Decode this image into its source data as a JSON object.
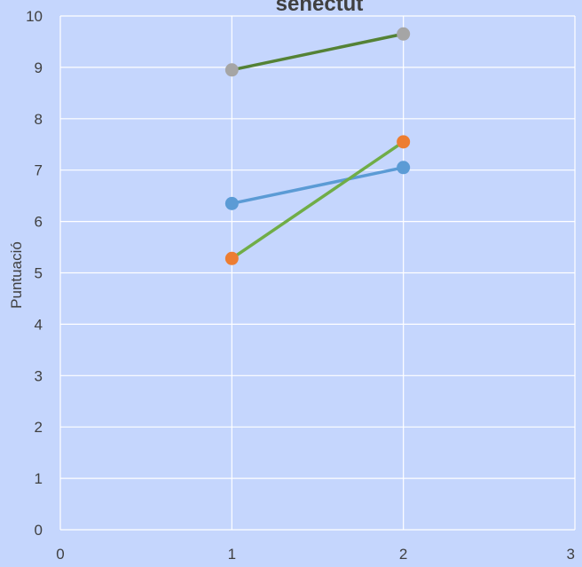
{
  "chart_data": {
    "type": "scatter",
    "title": "senectut",
    "xlabel": "",
    "ylabel": "Puntuació",
    "xlim": [
      0,
      3
    ],
    "ylim": [
      0,
      10
    ],
    "x_ticks": [
      "0",
      "1",
      "2",
      "3"
    ],
    "y_ticks": [
      "0",
      "1",
      "2",
      "3",
      "4",
      "5",
      "6",
      "7",
      "8",
      "9",
      "10"
    ],
    "grid": true,
    "legend": "none",
    "background_color": "#c5d6fd",
    "series": [
      {
        "color": "#5b9bd5",
        "marker_color": "#5b9bd5",
        "x": [
          1,
          2
        ],
        "y": [
          6.35,
          7.05
        ]
      },
      {
        "color": "#70ad47",
        "marker_color": "#ed7d31",
        "x": [
          1,
          2
        ],
        "y": [
          5.28,
          7.55
        ]
      },
      {
        "color": "#548235",
        "marker_color": "#a5a5a5",
        "x": [
          1,
          2
        ],
        "y": [
          8.95,
          9.65
        ]
      }
    ]
  }
}
